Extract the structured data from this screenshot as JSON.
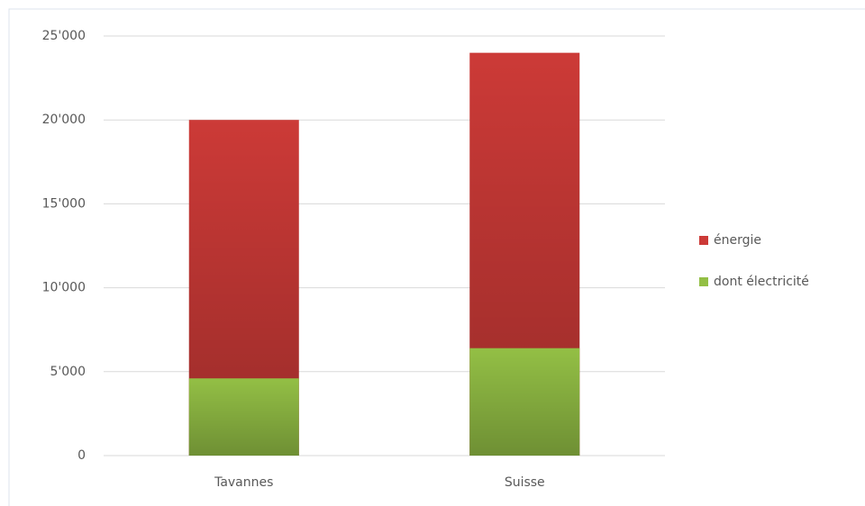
{
  "chart_data": {
    "type": "bar",
    "overlap": true,
    "categories": [
      "Tavannes",
      "Suisse"
    ],
    "series": [
      {
        "name": "énergie",
        "color": "#cc3a37",
        "values": [
          20000,
          24000
        ]
      },
      {
        "name": "dont électricité",
        "color": "#93bf45",
        "values": [
          4600,
          6400
        ]
      }
    ],
    "ylim": [
      0,
      25000
    ],
    "yticks": [
      0,
      {
        "value": 5000,
        "label": "5'000"
      },
      {
        "value": 10000,
        "label": "10'000"
      },
      {
        "value": 15000,
        "label": "15'000"
      },
      {
        "value": 20000,
        "label": "20'000"
      },
      {
        "value": 25000,
        "label": "25'000"
      }
    ],
    "grid": true,
    "legend": "right"
  }
}
